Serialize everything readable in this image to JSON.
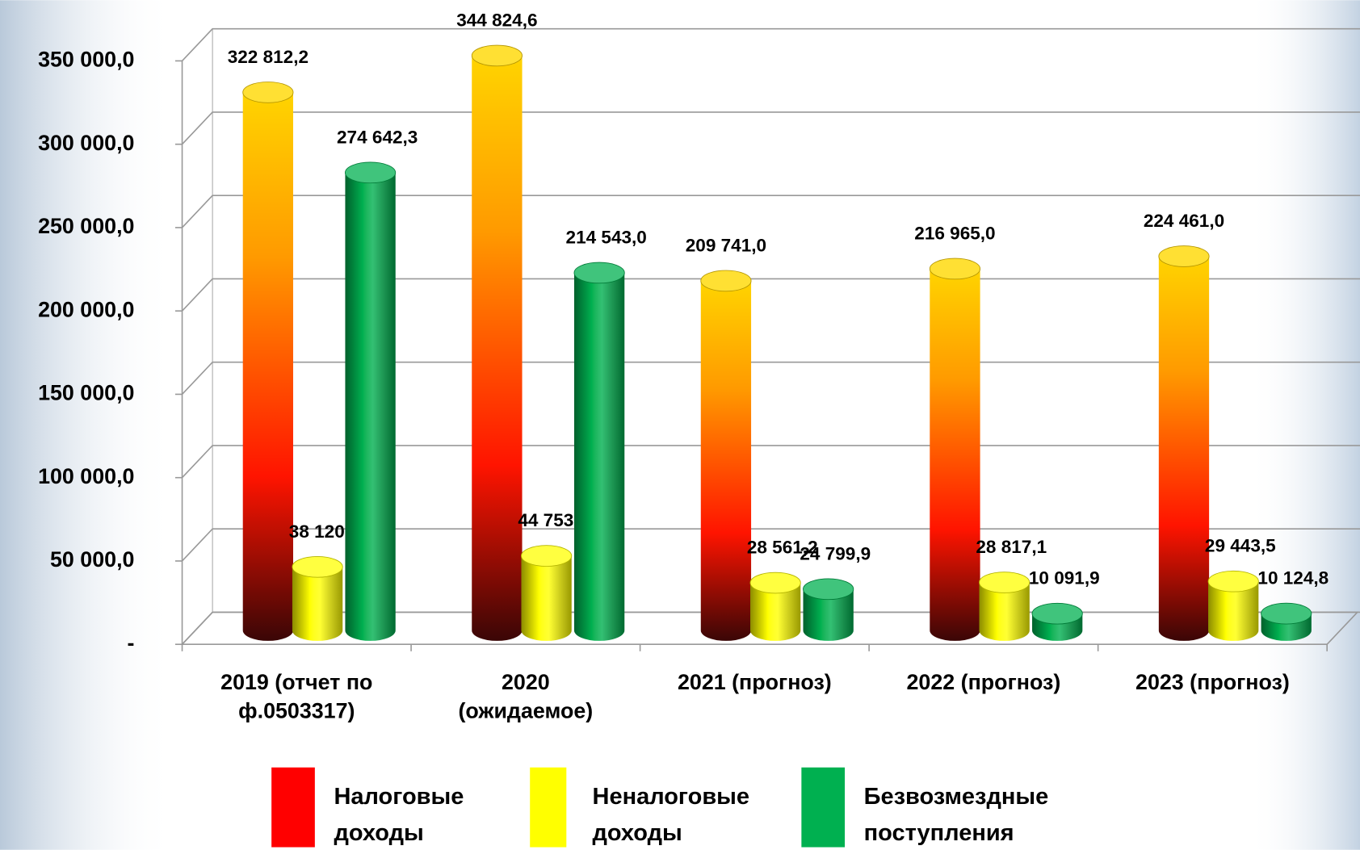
{
  "chart_data": {
    "type": "bar3d",
    "categories": [
      "2019 (отчет по ф.0503317)",
      "2020 (ожидаемое)",
      "2021 (прогноз)",
      "2022 (прогноз)",
      "2023 (прогноз)"
    ],
    "series": [
      {
        "name": "Налоговые доходы",
        "color": "#ff0000",
        "values": [
          322812.2,
          344824.6,
          209741.0,
          216965.0,
          224461.0
        ],
        "value_labels": [
          "322 812,2",
          "344 824,6",
          "209 741,0",
          "216 965,0",
          "224 461,0"
        ]
      },
      {
        "name": "Неналоговые доходы",
        "color": "#ffff00",
        "values": [
          38120.3,
          44753.0,
          28561.2,
          28817.1,
          29443.5
        ],
        "value_labels": [
          "38 120,3",
          "44 753,0",
          "28 561,2",
          "28 817,1",
          "29 443,5"
        ]
      },
      {
        "name": "Безвозмездные поступления",
        "color": "#00b050",
        "values": [
          274642.3,
          214543.0,
          24799.9,
          10091.9,
          10124.8
        ],
        "value_labels": [
          "274 642,3",
          "214 543,0",
          "24 799,9",
          "10 091,9",
          "10 124,8"
        ]
      }
    ],
    "ylim": [
      0,
      350000
    ],
    "yticks": [
      {
        "value": 0,
        "label": "-"
      },
      {
        "value": 50000,
        "label": "50 000,0"
      },
      {
        "value": 100000,
        "label": "100 000,0"
      },
      {
        "value": 150000,
        "label": "150 000,0"
      },
      {
        "value": 200000,
        "label": "200 000,0"
      },
      {
        "value": 250000,
        "label": "250 000,0"
      },
      {
        "value": 300000,
        "label": "300 000,0"
      },
      {
        "value": 350000,
        "label": "350 000,0"
      }
    ],
    "grid": true,
    "legend": "bottom"
  }
}
